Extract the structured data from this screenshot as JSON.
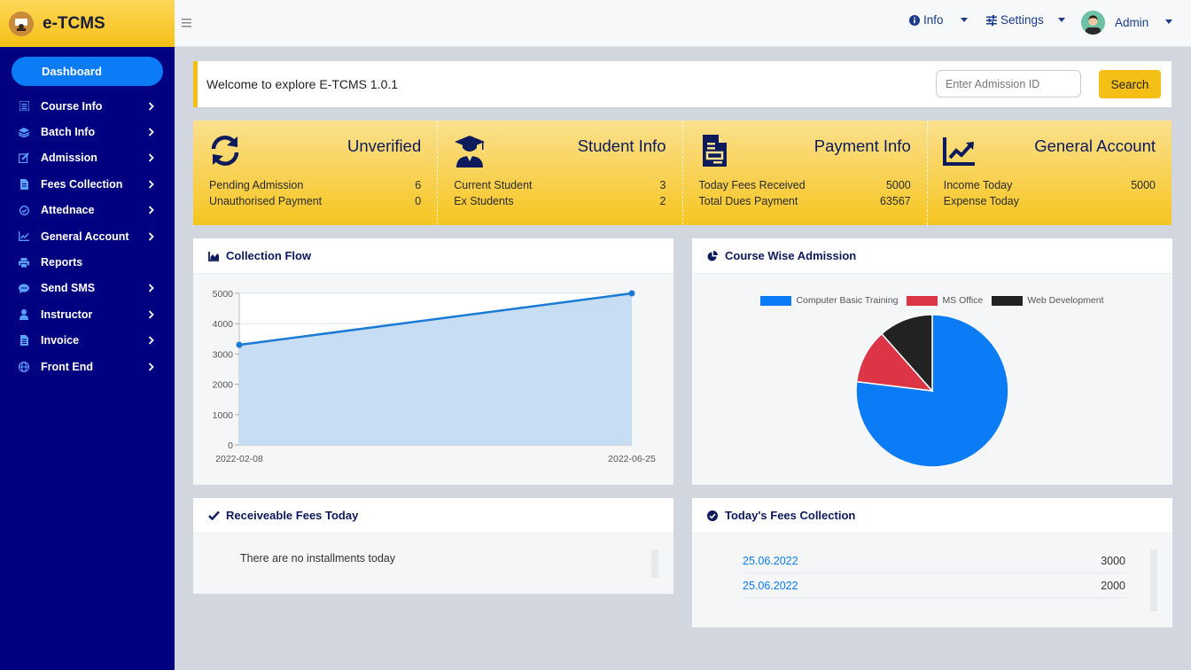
{
  "brand": {
    "name": "e-TCMS"
  },
  "sidebar": {
    "dashboard_label": "Dashboard",
    "items": [
      {
        "label": "Course Info",
        "icon": "list-icon",
        "has_children": true
      },
      {
        "label": "Batch Info",
        "icon": "layers-icon",
        "has_children": true
      },
      {
        "label": "Admission",
        "icon": "edit-icon",
        "has_children": true
      },
      {
        "label": "Fees Collection",
        "icon": "document-icon",
        "has_children": true
      },
      {
        "label": "Attednace",
        "icon": "check-circle-icon",
        "has_children": true
      },
      {
        "label": "General Account",
        "icon": "chart-line-icon",
        "has_children": true
      },
      {
        "label": "Reports",
        "icon": "print-icon",
        "has_children": false
      },
      {
        "label": "Send SMS",
        "icon": "chat-icon",
        "has_children": true
      },
      {
        "label": "Instructor",
        "icon": "user-icon",
        "has_children": true
      },
      {
        "label": "Invoice",
        "icon": "invoice-icon",
        "has_children": true
      },
      {
        "label": "Front End",
        "icon": "globe-icon",
        "has_children": true
      }
    ]
  },
  "topbar": {
    "info_label": "Info",
    "settings_label": "Settings",
    "user_name": "Admin"
  },
  "welcome": {
    "text": "Welcome to explore E-TCMS 1.0.1",
    "input_placeholder": "Enter Admission ID",
    "search_label": "Search"
  },
  "stats": [
    {
      "title": "Unverified",
      "icon": "refresh-icon",
      "rows": [
        {
          "label": "Pending Admission",
          "value": "6"
        },
        {
          "label": "Unauthorised Payment",
          "value": "0"
        }
      ]
    },
    {
      "title": "Student Info",
      "icon": "graduate-icon",
      "rows": [
        {
          "label": "Current Student",
          "value": "3"
        },
        {
          "label": "Ex Students",
          "value": "2"
        }
      ]
    },
    {
      "title": "Payment Info",
      "icon": "file-icon",
      "rows": [
        {
          "label": "Today Fees Received",
          "value": "5000"
        },
        {
          "label": "Total Dues Payment",
          "value": "63567"
        }
      ]
    },
    {
      "title": "General Account",
      "icon": "chart-icon",
      "rows": [
        {
          "label": "Income Today",
          "value": "5000"
        },
        {
          "label": "Expense Today",
          "value": ""
        }
      ]
    }
  ],
  "cards": {
    "collection_flow": "Collection Flow",
    "course_wise": "Course Wise Admission",
    "receivable": "Receiveable Fees Today",
    "receivable_empty": "There are no installments today",
    "todays_fees": "Today's Fees Collection"
  },
  "todays_fees_rows": [
    {
      "date": "25.06.2022",
      "amount": "3000"
    },
    {
      "date": "25.06.2022",
      "amount": "2000"
    }
  ],
  "chart_data": [
    {
      "type": "area",
      "x": [
        "2022-02-08",
        "2022-06-25"
      ],
      "y": [
        3300,
        5000
      ],
      "xticks": [
        "2022-02-08",
        "2022-06-25"
      ],
      "yticks": [
        0,
        1000,
        2000,
        3000,
        4000,
        5000
      ],
      "ylim": [
        0,
        5000
      ],
      "grid": true,
      "color": "#1a7bd6",
      "fill": "#c6ddf3"
    },
    {
      "type": "pie",
      "labels": [
        "Computer Basic Training",
        "MS Office",
        "Web Development"
      ],
      "values": [
        3,
        0.45,
        0.45
      ],
      "colors": [
        "#0b7cf5",
        "#dc3545",
        "#222222"
      ],
      "legend": "top"
    }
  ]
}
